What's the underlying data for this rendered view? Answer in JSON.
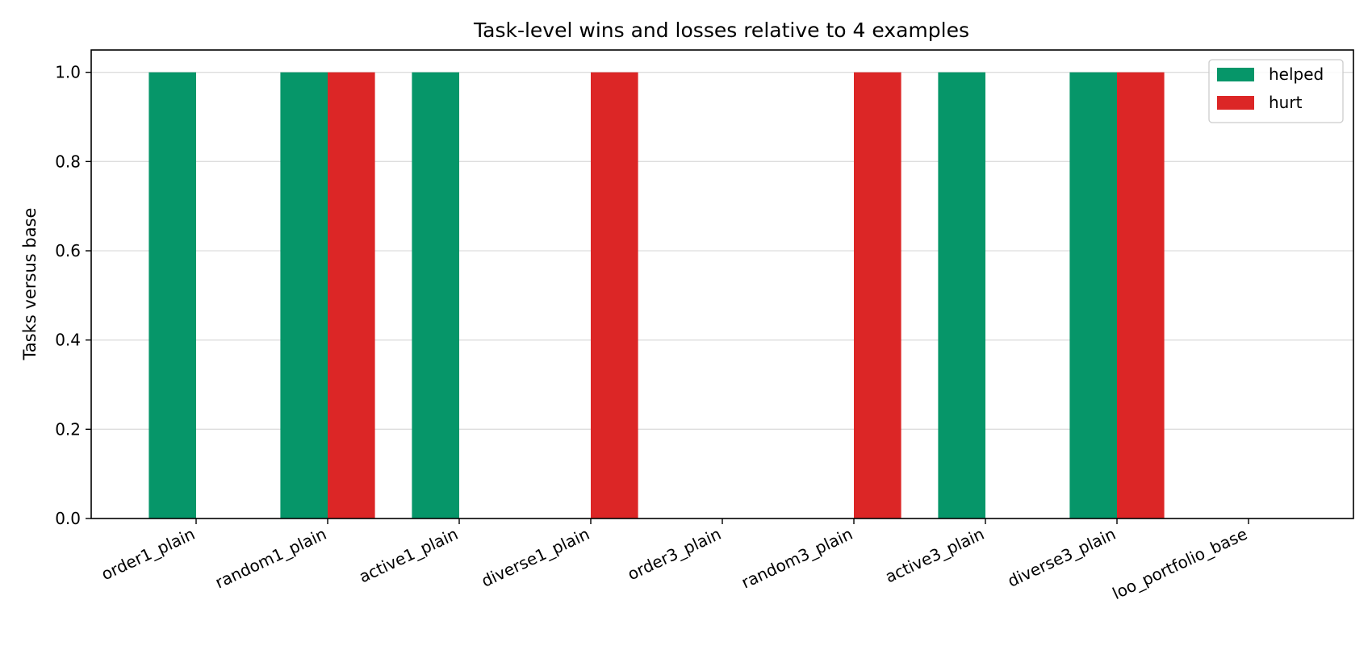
{
  "chart_data": {
    "type": "bar",
    "title": "Task-level wins and losses relative to 4 examples",
    "xlabel": "",
    "ylabel": "Tasks versus base",
    "ylim": [
      0,
      1.05
    ],
    "yticks": [
      "0.0",
      "0.2",
      "0.4",
      "0.6",
      "0.8",
      "1.0"
    ],
    "grid": "horizontal",
    "legend_position": "top-right",
    "categories": [
      "order1_plain",
      "random1_plain",
      "active1_plain",
      "diverse1_plain",
      "order3_plain",
      "random3_plain",
      "active3_plain",
      "diverse3_plain",
      "loo_portfolio_base"
    ],
    "series": [
      {
        "name": "helped",
        "color": "#069669",
        "values": [
          1,
          1,
          1,
          0,
          0,
          0,
          1,
          1,
          0
        ]
      },
      {
        "name": "hurt",
        "color": "#dc2626",
        "values": [
          0,
          1,
          0,
          1,
          0,
          1,
          0,
          1,
          0
        ]
      }
    ]
  }
}
